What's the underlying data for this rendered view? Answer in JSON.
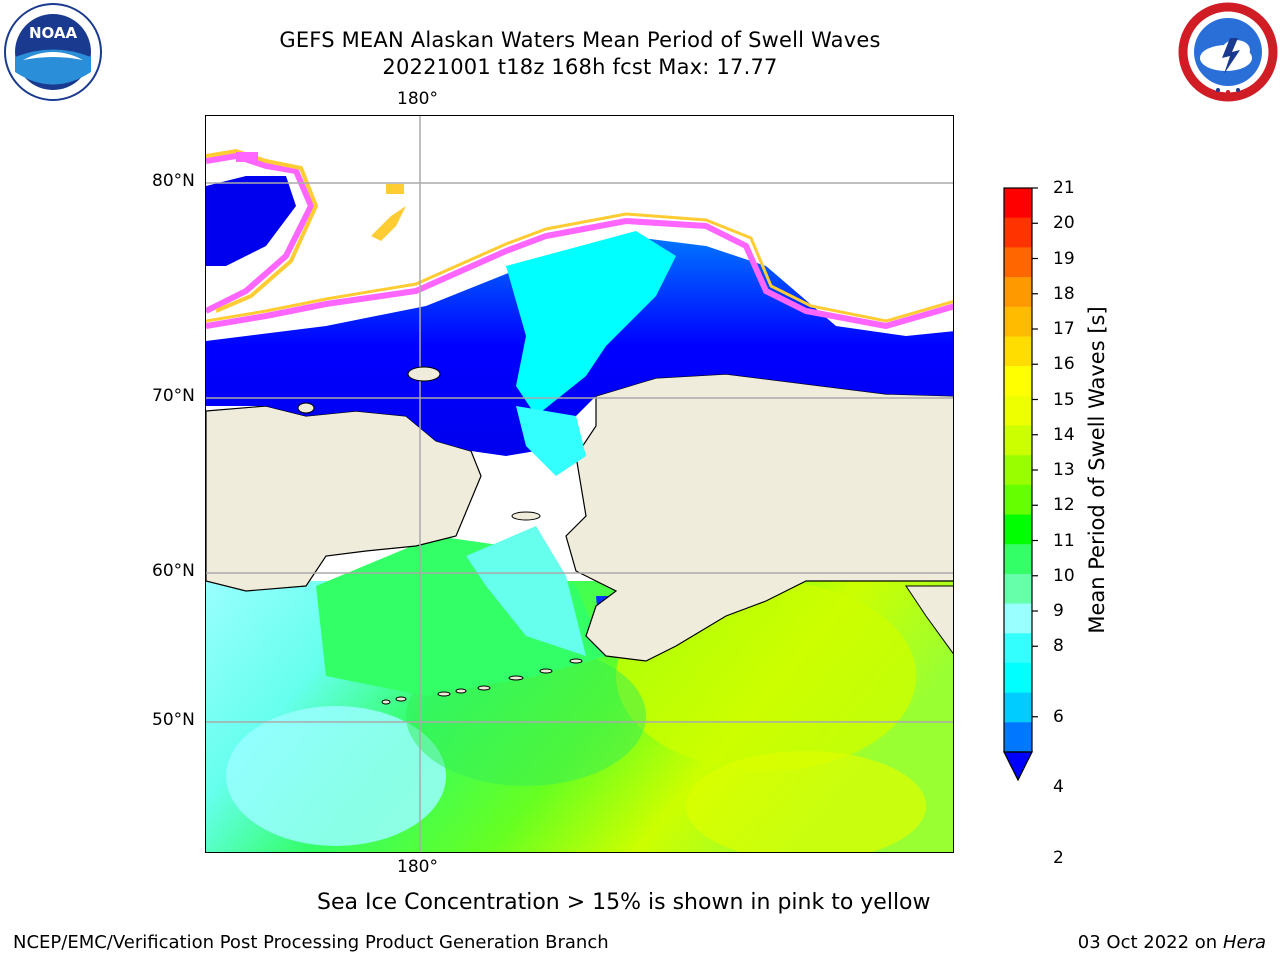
{
  "title": {
    "line1": "GEFS MEAN Alaskan Waters Mean Period of Swell Waves",
    "line2": "20221001 t18z 168h fcst   Max: 17.77"
  },
  "logos": {
    "left": "noaa-logo",
    "right": "nws-logo",
    "left_text": "NOAA",
    "right_text": "NATIONAL WEATHER SERVICE"
  },
  "map": {
    "lon_label_top": "180°",
    "lon_label_bottom": "180°",
    "lat_labels": [
      "80°N",
      "70°N",
      "60°N",
      "50°N"
    ],
    "land_color": "#efecdc",
    "ocean_gradient_colors": [
      "#0000ff",
      "#0077ff",
      "#00ffff",
      "#99ffff",
      "#33ff66",
      "#66ff00",
      "#ccff00",
      "#ffff00"
    ],
    "ice_colors": [
      "#ff66ff",
      "#ffcc33"
    ]
  },
  "colorbar": {
    "label": "Mean Period of Swell Waves [s]",
    "ticks": [
      "21",
      "20",
      "19",
      "18",
      "17",
      "16",
      "15",
      "14",
      "13",
      "12",
      "11",
      "10",
      "9",
      "8",
      "6",
      "4",
      "2"
    ],
    "colors": [
      "#ff0000",
      "#ff3300",
      "#ff6600",
      "#ff9900",
      "#ffbb00",
      "#ffdd00",
      "#ffff00",
      "#eeff00",
      "#ccff00",
      "#99ff00",
      "#66ff00",
      "#00ff00",
      "#33ff66",
      "#66ffaa",
      "#99ffff",
      "#33ffff",
      "#00ffff",
      "#00ccff",
      "#0077ff"
    ],
    "extend_color": "#0000ff"
  },
  "notes": {
    "ice": "Sea Ice Concentration > 15% is shown in pink to yellow"
  },
  "footer": {
    "left": "NCEP/EMC/Verification Post Processing Product Generation Branch",
    "right_date": "03 Oct 2022 on ",
    "right_host": "Hera"
  }
}
